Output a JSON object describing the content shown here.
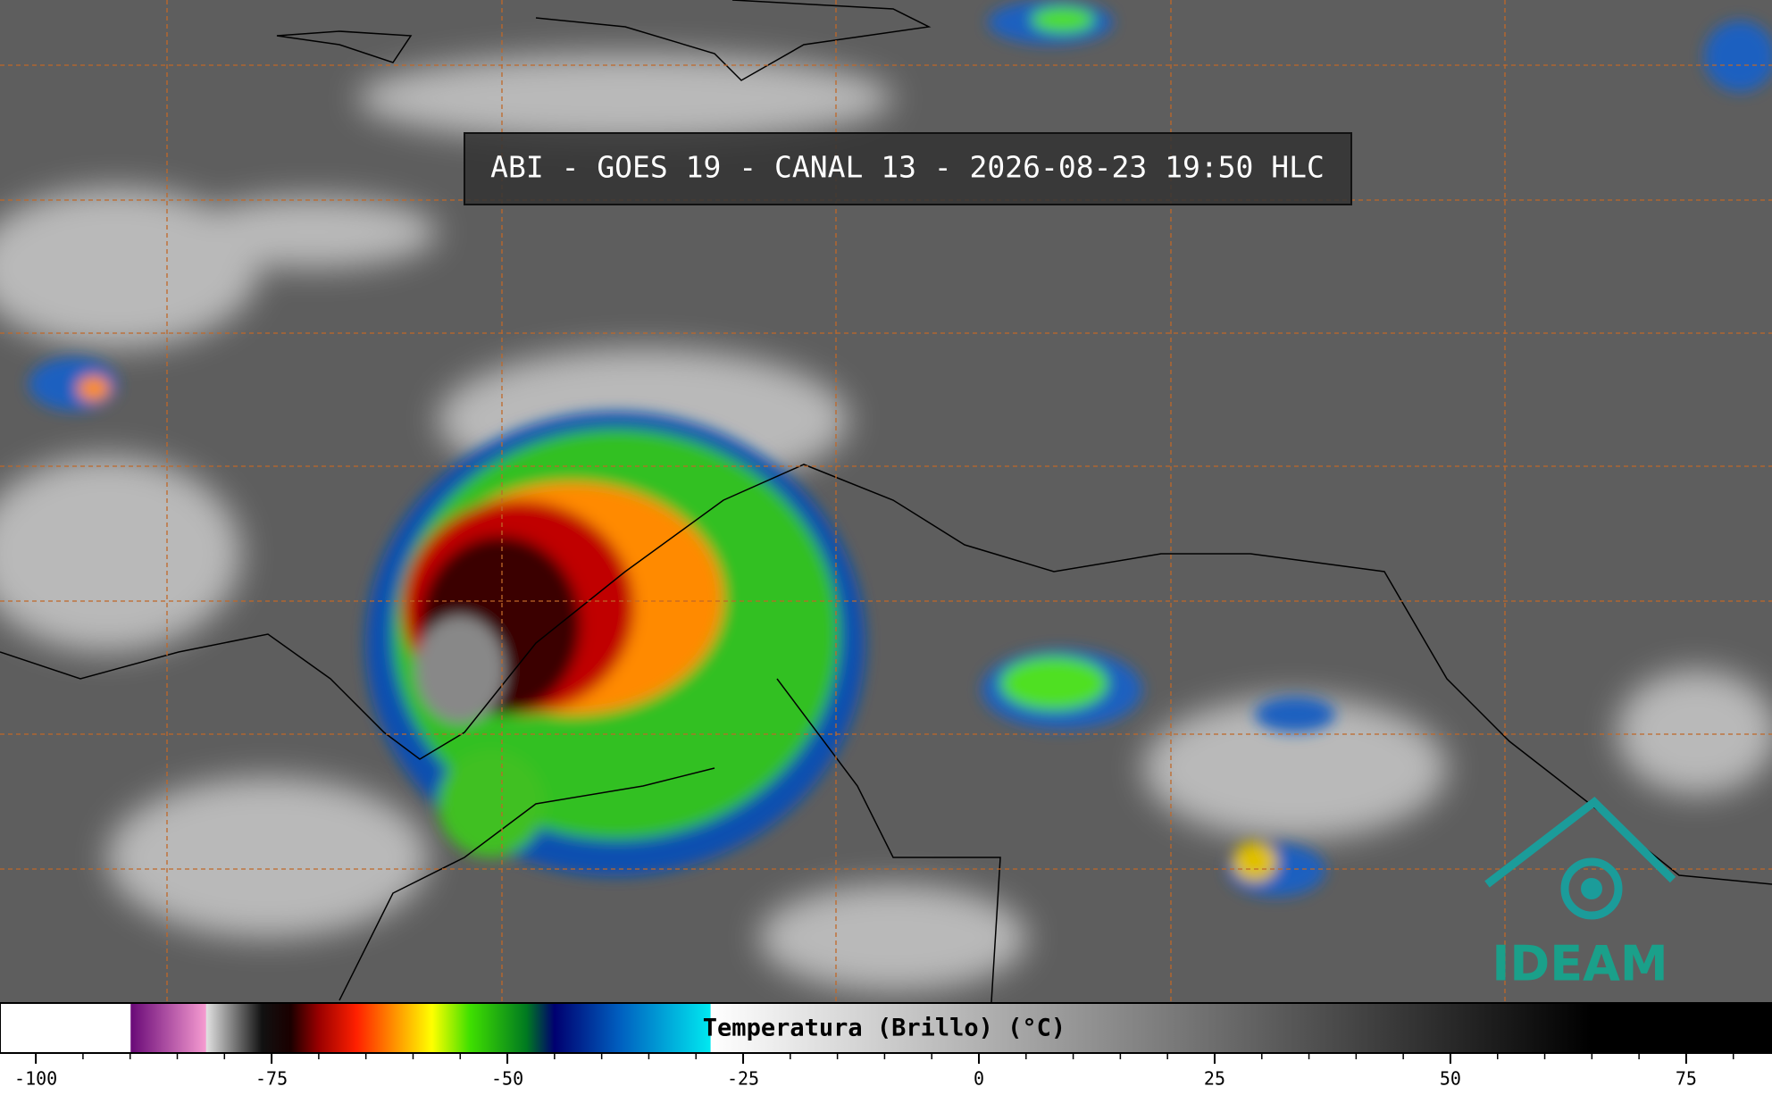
{
  "title": "ABI - GOES 19 - CANAL 13 - 2026-08-23 19:50 HLC",
  "logo": "IDEAM",
  "colorbar": {
    "label": "Temperatura (Brillo) (°C)",
    "lim": [
      -103.8,
      84.1
    ],
    "ticks": [
      -100,
      -75,
      -50,
      -25,
      0,
      25,
      50,
      75
    ],
    "minor_ticks": [
      -95,
      -90,
      -85,
      -80,
      -70,
      -65,
      -60,
      -55,
      -45,
      -40,
      -35,
      -30,
      -20,
      -15,
      -10,
      -5,
      5,
      10,
      15,
      20,
      30,
      35,
      40,
      45,
      55,
      60,
      65,
      70,
      80
    ],
    "stops": [
      {
        "value": -103.8,
        "color": "#ffffff"
      },
      {
        "value": -90,
        "color": "#ffffff"
      },
      {
        "value": -89.9,
        "color": "#6a0a78"
      },
      {
        "value": -82,
        "color": "#f59ad0"
      },
      {
        "value": -81.9,
        "color": "#e0e0e0"
      },
      {
        "value": -76,
        "color": "#111111"
      },
      {
        "value": -73,
        "color": "#1a0000"
      },
      {
        "value": -70,
        "color": "#9a0000"
      },
      {
        "value": -66,
        "color": "#ff2000"
      },
      {
        "value": -62,
        "color": "#ff9000"
      },
      {
        "value": -58,
        "color": "#ffff00"
      },
      {
        "value": -54,
        "color": "#40e000"
      },
      {
        "value": -48,
        "color": "#007a20"
      },
      {
        "value": -45,
        "color": "#000070"
      },
      {
        "value": -38,
        "color": "#0060c0"
      },
      {
        "value": -28.5,
        "color": "#00e8f0"
      },
      {
        "value": -28.4,
        "color": "#ffffff"
      },
      {
        "value": 65,
        "color": "#000000"
      },
      {
        "value": 84.1,
        "color": "#000000"
      }
    ]
  }
}
